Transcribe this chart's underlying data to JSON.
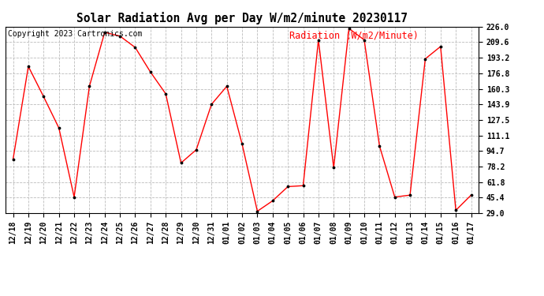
{
  "title": "Solar Radiation Avg per Day W/m2/minute 20230117",
  "copyright": "Copyright 2023 Cartronics.com",
  "legend_label": "Radiation (W/m2/Minute)",
  "dates": [
    "12/18",
    "12/19",
    "12/20",
    "12/21",
    "12/22",
    "12/23",
    "12/24",
    "12/25",
    "12/26",
    "12/27",
    "12/28",
    "12/29",
    "12/30",
    "12/31",
    "01/01",
    "01/02",
    "01/03",
    "01/04",
    "01/05",
    "01/06",
    "01/07",
    "01/08",
    "01/09",
    "01/10",
    "01/11",
    "01/12",
    "01/13",
    "01/14",
    "01/15",
    "01/16",
    "01/17"
  ],
  "values": [
    86,
    184,
    152,
    119,
    46,
    163,
    220,
    216,
    204,
    178,
    155,
    82,
    96,
    144,
    163,
    102,
    31,
    42,
    57,
    58,
    212,
    77,
    224,
    212,
    100,
    46,
    48,
    192,
    205,
    32,
    48
  ],
  "line_color": "#ff0000",
  "marker_color": "#000000",
  "background_color": "#ffffff",
  "grid_color": "#bbbbbb",
  "title_fontsize": 10.5,
  "copyright_fontsize": 7,
  "legend_fontsize": 8.5,
  "tick_fontsize": 7,
  "ylim_min": 29.0,
  "ylim_max": 226.0,
  "yticks": [
    29.0,
    45.4,
    61.8,
    78.2,
    94.7,
    111.1,
    127.5,
    143.9,
    160.3,
    176.8,
    193.2,
    209.6,
    226.0
  ],
  "ytick_labels": [
    "29.0",
    "45.4",
    "61.8",
    "78.2",
    "94.7",
    "111.1",
    "127.5",
    "143.9",
    "160.3",
    "176.8",
    "193.2",
    "209.6",
    "226.0"
  ]
}
